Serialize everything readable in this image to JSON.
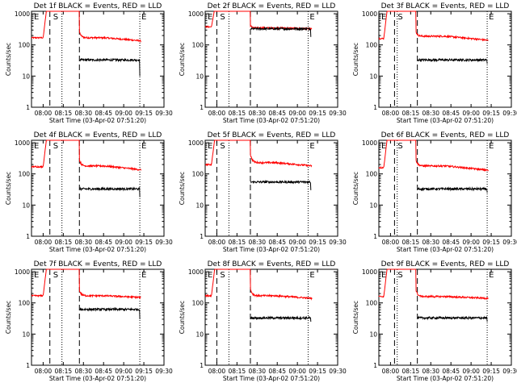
{
  "figure": {
    "start_time_label": "Start Time (03-Apr-02 07:51:20)",
    "ylabel": "Counts/sec",
    "colors": {
      "events": "#000000",
      "lld": "#ff0000",
      "axes": "#000000",
      "background": "#ffffff"
    }
  },
  "chart_data": [
    {
      "type": "line",
      "title": "Det 1f BLACK = Events, RED = LLD",
      "yscale": "log",
      "ylim": [
        1,
        1200
      ],
      "xlim": [
        "07:51:20",
        "09:30"
      ],
      "x_ticks": [
        "08:00",
        "08:15",
        "08:30",
        "08:45",
        "09:00",
        "09:15",
        "09:30"
      ],
      "y_ticks": [
        "1",
        "10",
        "100",
        "1000"
      ],
      "marker_letters": [
        "E",
        "S",
        "E"
      ],
      "saa_entry": "08:03",
      "saa_exit": "08:27",
      "dashed": [
        "08:05",
        "08:27"
      ],
      "dotted": [
        "08:14",
        "09:12"
      ],
      "lld": {
        "pre": 170,
        "post_start": 260,
        "plateau": 170,
        "end": 135
      },
      "events": {
        "start": "08:27",
        "end": "09:12",
        "level": 33,
        "final_drop": 10
      }
    },
    {
      "type": "line",
      "title": "Det 2f BLACK = Events, RED = LLD",
      "yscale": "log",
      "ylim": [
        1,
        1200
      ],
      "xlim": [
        "07:51:20",
        "09:30"
      ],
      "x_ticks": [
        "08:00",
        "08:15",
        "08:30",
        "08:45",
        "09:00",
        "09:15",
        "09:30"
      ],
      "y_ticks": [
        "1",
        "10",
        "100",
        "1000"
      ],
      "marker_letters": [
        "E",
        "S",
        "E"
      ],
      "saa_entry": "07:59",
      "saa_exit": "08:25",
      "dashed": [
        "08:00",
        "08:25"
      ],
      "dotted": [
        "08:09",
        "09:08"
      ],
      "lld": {
        "pre": 380,
        "post_start": 420,
        "plateau": 350,
        "end": 330
      },
      "events": {
        "start": "08:25",
        "end": "09:10",
        "level": 330,
        "final_drop": 180
      }
    },
    {
      "type": "line",
      "title": "Det 3f BLACK = Events, RED = LLD",
      "yscale": "log",
      "ylim": [
        1,
        1200
      ],
      "xlim": [
        "07:51:20",
        "09:30"
      ],
      "x_ticks": [
        "08:00",
        "08:15",
        "08:30",
        "08:45",
        "09:00",
        "09:15",
        "09:30"
      ],
      "y_ticks": [
        "1",
        "10",
        "100",
        "1000"
      ],
      "marker_letters": [
        "E",
        "S",
        "E"
      ],
      "saa_entry": "07:58",
      "saa_exit": "08:19",
      "dashed": [
        "08:03",
        "08:20"
      ],
      "dotted": [
        "08:05",
        "09:12"
      ],
      "lld": {
        "pre": 160,
        "post_start": 260,
        "plateau": 190,
        "end": 140
      },
      "events": {
        "start": "08:20",
        "end": "09:12",
        "level": 33,
        "final_drop": 25
      }
    },
    {
      "type": "line",
      "title": "Det 4f BLACK = Events, RED = LLD",
      "yscale": "log",
      "ylim": [
        1,
        1200
      ],
      "xlim": [
        "07:51:20",
        "09:30"
      ],
      "x_ticks": [
        "08:00",
        "08:15",
        "08:30",
        "08:45",
        "09:00",
        "09:15",
        "09:30"
      ],
      "y_ticks": [
        "1",
        "10",
        "100",
        "1000"
      ],
      "marker_letters": [
        "E",
        "S",
        "E"
      ],
      "saa_entry": "08:03",
      "saa_exit": "08:27",
      "dashed": [
        "08:05",
        "08:27"
      ],
      "dotted": [
        "08:14",
        "09:12"
      ],
      "lld": {
        "pre": 170,
        "post_start": 280,
        "plateau": 180,
        "end": 135
      },
      "events": {
        "start": "08:27",
        "end": "09:12",
        "level": 33,
        "final_drop": 18
      }
    },
    {
      "type": "line",
      "title": "Det 5f BLACK = Events, RED = LLD",
      "yscale": "log",
      "ylim": [
        1,
        1200
      ],
      "xlim": [
        "07:51:20",
        "09:30"
      ],
      "x_ticks": [
        "08:00",
        "08:15",
        "08:30",
        "08:45",
        "09:00",
        "09:15",
        "09:30"
      ],
      "y_ticks": [
        "1",
        "10",
        "100",
        "1000"
      ],
      "marker_letters": [
        "E",
        "S",
        "E"
      ],
      "saa_entry": "07:59",
      "saa_exit": "08:25",
      "dashed": [
        "08:00",
        "08:25"
      ],
      "dotted": [
        "08:09",
        "09:08"
      ],
      "lld": {
        "pre": 200,
        "post_start": 420,
        "plateau": 230,
        "end": 180
      },
      "events": {
        "start": "08:25",
        "end": "09:10",
        "level": 55,
        "final_drop": 30
      }
    },
    {
      "type": "line",
      "title": "Det 6f BLACK = Events, RED = LLD",
      "yscale": "log",
      "ylim": [
        1,
        1200
      ],
      "xlim": [
        "07:51:20",
        "09:30"
      ],
      "x_ticks": [
        "08:00",
        "08:15",
        "08:30",
        "08:45",
        "09:00",
        "09:15",
        "09:30"
      ],
      "y_ticks": [
        "1",
        "10",
        "100",
        "1000"
      ],
      "marker_letters": [
        "E",
        "S",
        "E"
      ],
      "saa_entry": "07:58",
      "saa_exit": "08:19",
      "dashed": [
        "08:03",
        "08:20"
      ],
      "dotted": [
        "08:05",
        "09:12"
      ],
      "lld": {
        "pre": 160,
        "post_start": 280,
        "plateau": 180,
        "end": 130
      },
      "events": {
        "start": "08:20",
        "end": "09:12",
        "level": 33,
        "final_drop": 25
      }
    },
    {
      "type": "line",
      "title": "Det 7f BLACK = Events, RED = LLD",
      "yscale": "log",
      "ylim": [
        1,
        1200
      ],
      "xlim": [
        "07:51:20",
        "09:30"
      ],
      "x_ticks": [
        "08:00",
        "08:15",
        "08:30",
        "08:45",
        "09:00",
        "09:15",
        "09:30"
      ],
      "y_ticks": [
        "1",
        "10",
        "100",
        "1000"
      ],
      "marker_letters": [
        "E",
        "S",
        "E"
      ],
      "saa_entry": "08:03",
      "saa_exit": "08:27",
      "dashed": [
        "08:05",
        "08:27"
      ],
      "dotted": [
        "08:14",
        "09:12"
      ],
      "lld": {
        "pre": 170,
        "post_start": 250,
        "plateau": 170,
        "end": 150
      },
      "events": {
        "start": "08:27",
        "end": "09:12",
        "level": 62,
        "final_drop": 30
      }
    },
    {
      "type": "line",
      "title": "Det 8f BLACK = Events, RED = LLD",
      "yscale": "log",
      "ylim": [
        1,
        1200
      ],
      "xlim": [
        "07:51:20",
        "09:30"
      ],
      "x_ticks": [
        "08:00",
        "08:15",
        "08:30",
        "08:45",
        "09:00",
        "09:15",
        "09:30"
      ],
      "y_ticks": [
        "1",
        "10",
        "100",
        "1000"
      ],
      "marker_letters": [
        "E",
        "S",
        "E"
      ],
      "saa_entry": "07:59",
      "saa_exit": "08:25",
      "dashed": [
        "08:00",
        "08:25"
      ],
      "dotted": [
        "08:09",
        "09:08"
      ],
      "lld": {
        "pre": 170,
        "post_start": 280,
        "plateau": 170,
        "end": 140
      },
      "events": {
        "start": "08:25",
        "end": "09:10",
        "level": 33,
        "final_drop": 25
      }
    },
    {
      "type": "line",
      "title": "Det 9f BLACK = Events, RED = LLD",
      "yscale": "log",
      "ylim": [
        1,
        1200
      ],
      "xlim": [
        "07:51:20",
        "09:30"
      ],
      "x_ticks": [
        "08:00",
        "08:15",
        "08:30",
        "08:45",
        "09:00",
        "09:15",
        "09:30"
      ],
      "y_ticks": [
        "1",
        "10",
        "100",
        "1000"
      ],
      "marker_letters": [
        "E",
        "S",
        "E"
      ],
      "saa_entry": "07:58",
      "saa_exit": "08:19",
      "dashed": [
        "08:03",
        "08:20"
      ],
      "dotted": [
        "08:05",
        "09:12"
      ],
      "lld": {
        "pre": 160,
        "post_start": 250,
        "plateau": 160,
        "end": 140
      },
      "events": {
        "start": "08:20",
        "end": "09:12",
        "level": 33,
        "final_drop": 25
      }
    }
  ]
}
